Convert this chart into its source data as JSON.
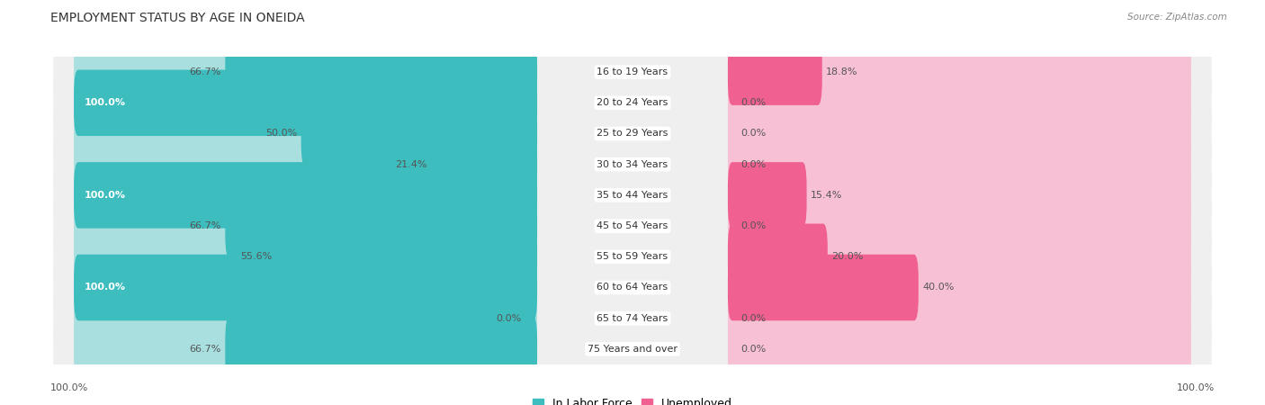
{
  "title": "EMPLOYMENT STATUS BY AGE IN ONEIDA",
  "source": "Source: ZipAtlas.com",
  "age_groups": [
    "16 to 19 Years",
    "20 to 24 Years",
    "25 to 29 Years",
    "30 to 34 Years",
    "35 to 44 Years",
    "45 to 54 Years",
    "55 to 59 Years",
    "60 to 64 Years",
    "65 to 74 Years",
    "75 Years and over"
  ],
  "labor_force": [
    66.7,
    100.0,
    50.0,
    21.4,
    100.0,
    66.7,
    55.6,
    100.0,
    0.0,
    66.7
  ],
  "unemployed": [
    18.8,
    0.0,
    0.0,
    0.0,
    15.4,
    0.0,
    20.0,
    40.0,
    0.0,
    0.0
  ],
  "labor_color": "#3dbdbe",
  "labor_color_light": "#aadfe0",
  "unemployed_color": "#f06090",
  "unemployed_color_light": "#f8c0d4",
  "row_bg_color": "#efefef",
  "title_fontsize": 10,
  "bar_label_fontsize": 8,
  "legend_fontsize": 9,
  "source_fontsize": 7.5,
  "axis_label_fontsize": 8
}
